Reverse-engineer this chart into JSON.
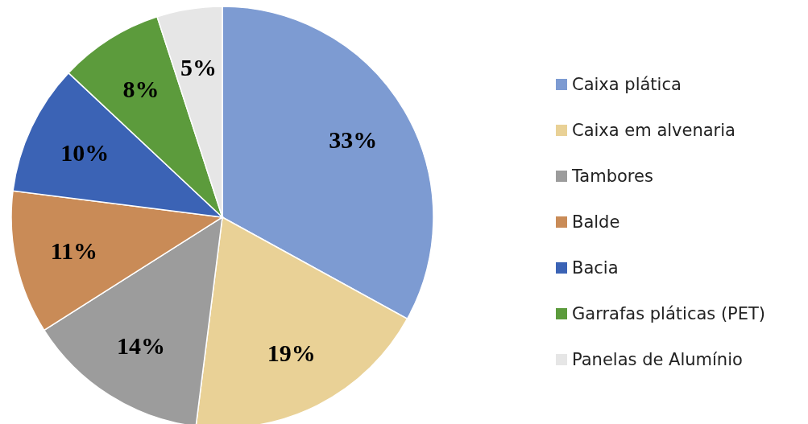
{
  "chart_data": {
    "type": "pie",
    "categories": [
      "Caixa plática",
      "Caixa em alvenaria",
      "Tambores",
      "Balde",
      "Bacia",
      "Garrafas pláticas (PET)",
      "Panelas de Alumínio"
    ],
    "values": [
      33,
      19,
      14,
      11,
      10,
      8,
      5
    ],
    "colors": [
      "#7d9bd2",
      "#e9d196",
      "#9c9c9c",
      "#c98b57",
      "#3b63b5",
      "#5c9b3c",
      "#e6e6e6"
    ],
    "value_labels": [
      "33%",
      "19%",
      "14%",
      "11%",
      "10%",
      "8%",
      "5%"
    ],
    "legend": "right"
  }
}
